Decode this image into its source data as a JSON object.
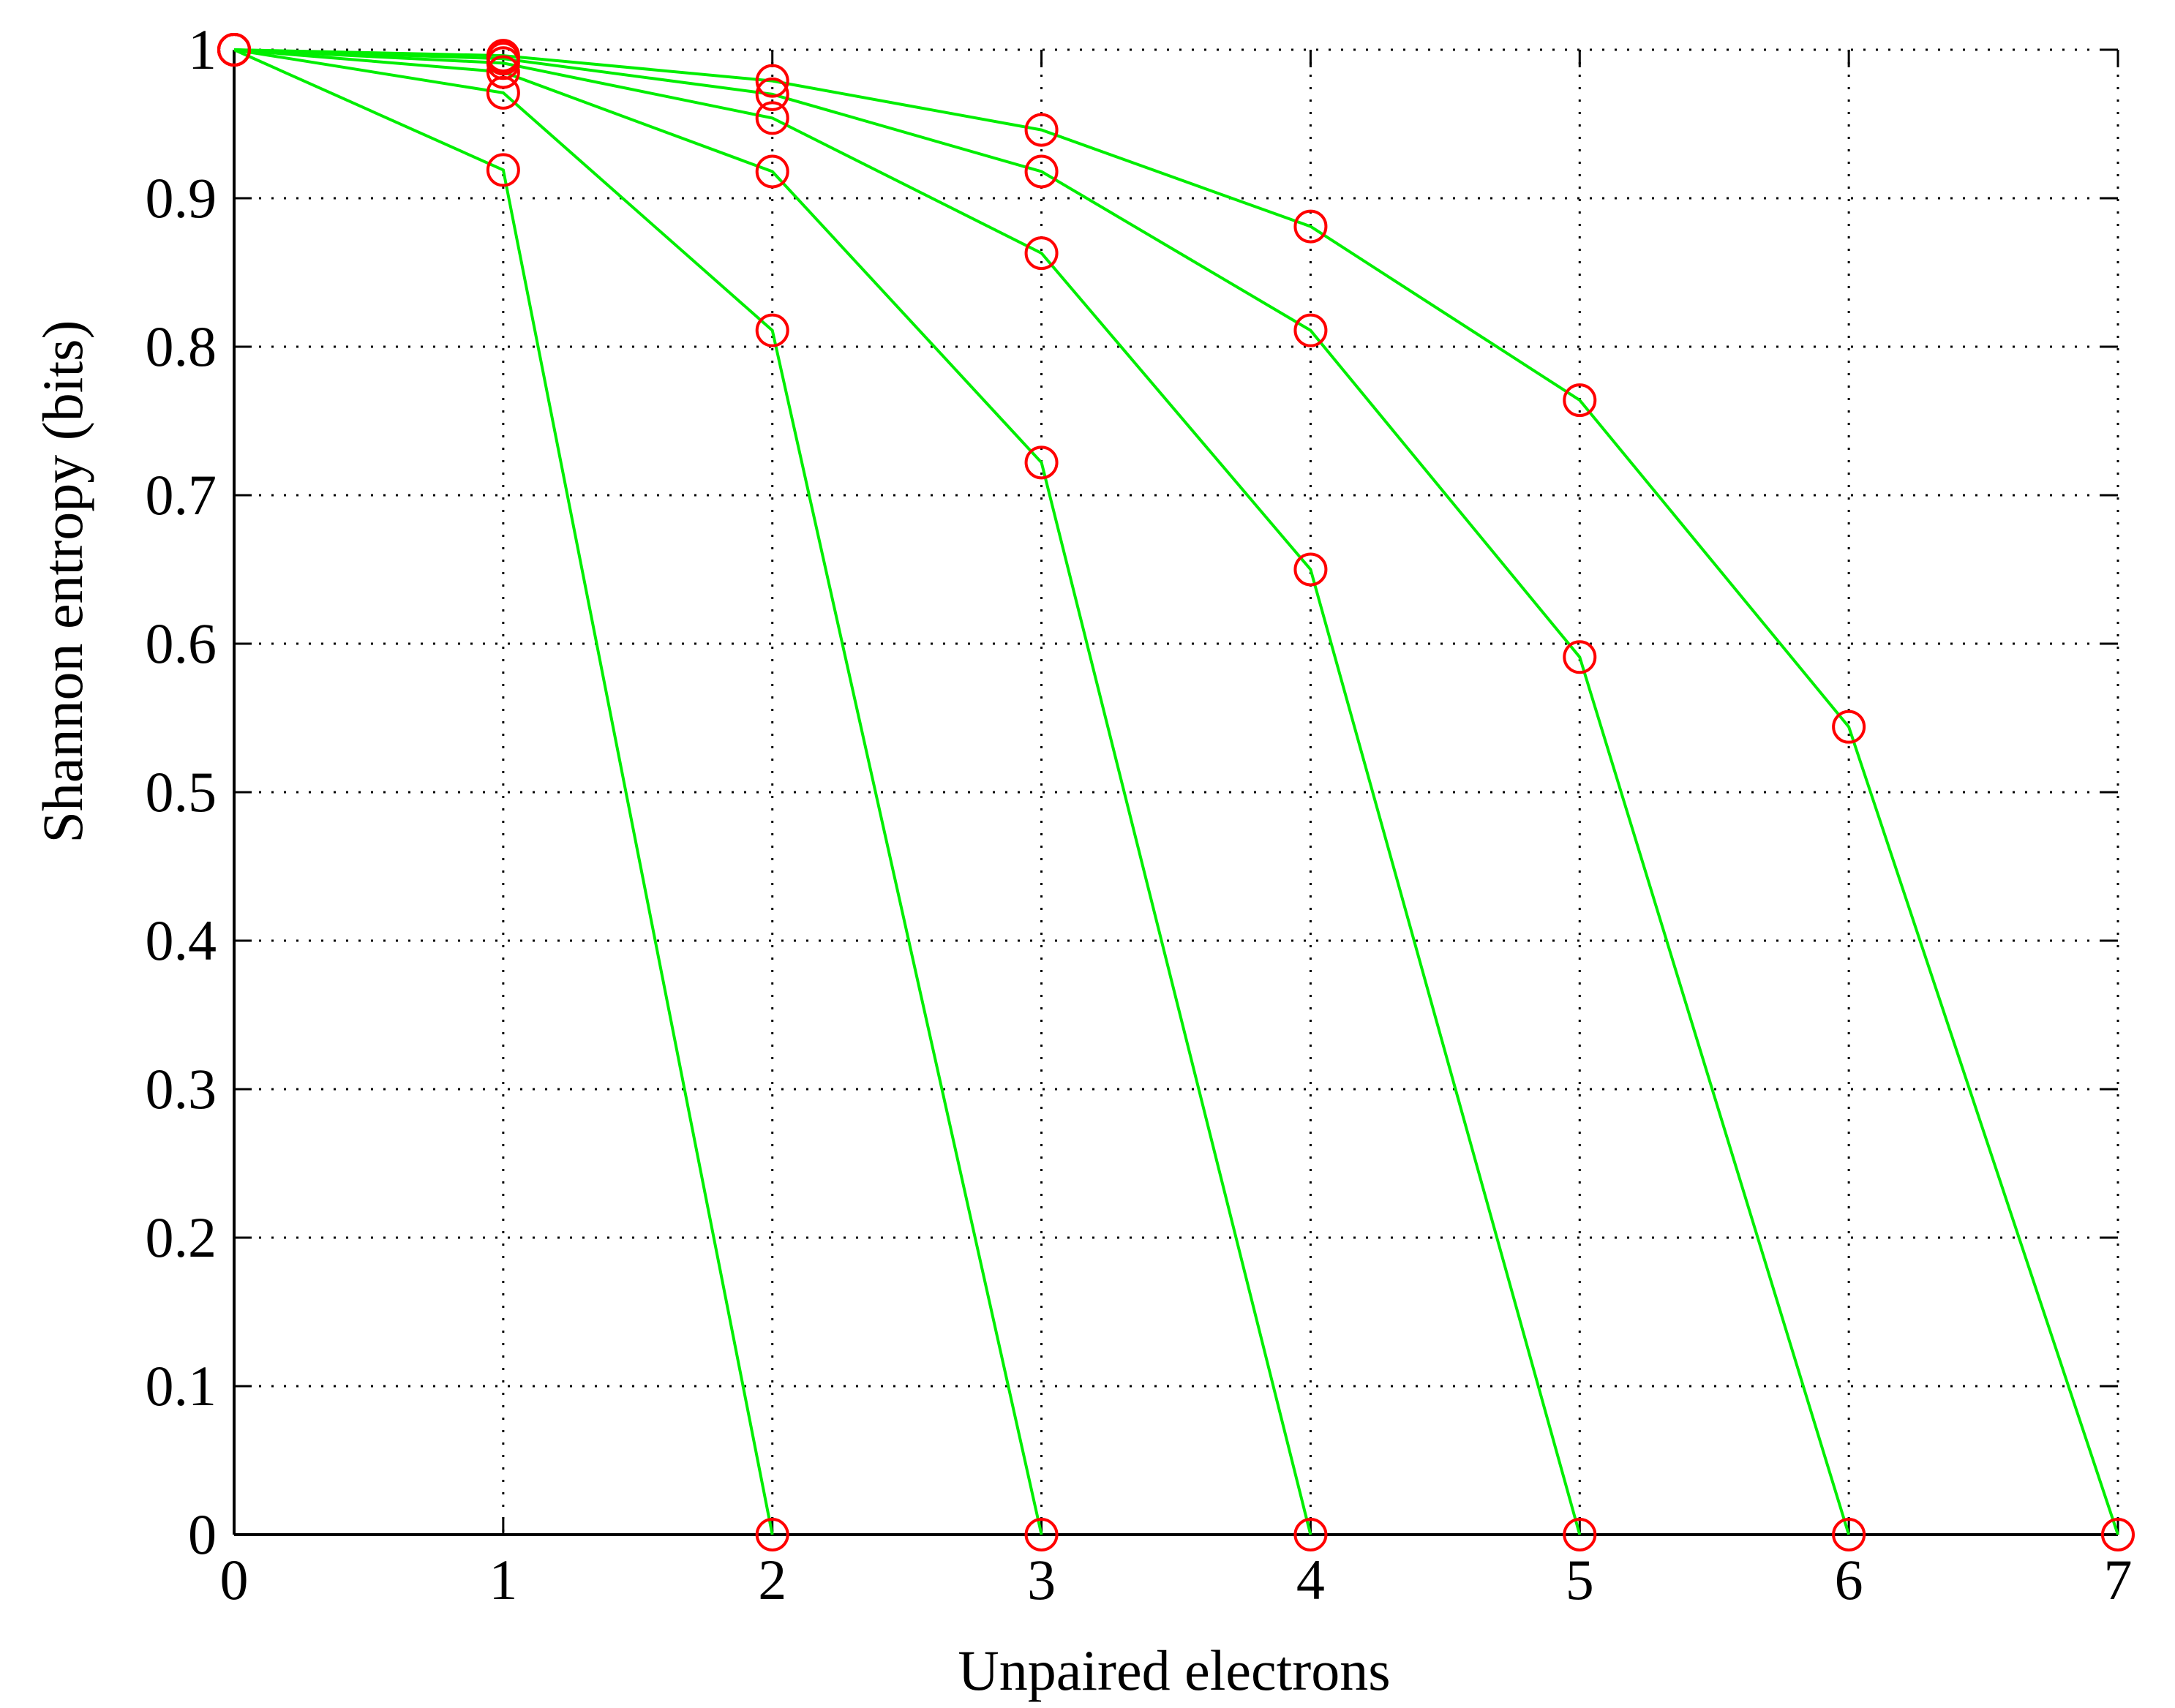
{
  "chart_data": {
    "type": "line",
    "xlabel": "Unpaired electrons",
    "ylabel": "Shannon entropy (bits)",
    "xlim": [
      0,
      7
    ],
    "ylim": [
      0,
      1
    ],
    "x_ticks": [
      "0",
      "1",
      "2",
      "3",
      "4",
      "5",
      "6",
      "7"
    ],
    "y_ticks": [
      "0",
      "0.1",
      "0.2",
      "0.3",
      "0.4",
      "0.5",
      "0.6",
      "0.7",
      "0.8",
      "0.9",
      "1"
    ],
    "grid": true,
    "line_color": "#00ee00",
    "marker_color": "#ff0000",
    "marker": "open-circle",
    "series": [
      {
        "points": [
          [
            0,
            1.0
          ],
          [
            1,
            0.919
          ],
          [
            2,
            0.0
          ]
        ]
      },
      {
        "points": [
          [
            0,
            1.0
          ],
          [
            1,
            0.971
          ],
          [
            2,
            0.811
          ],
          [
            3,
            0.0
          ]
        ]
      },
      {
        "points": [
          [
            0,
            1.0
          ],
          [
            1,
            0.985
          ],
          [
            2,
            0.918
          ],
          [
            3,
            0.722
          ],
          [
            4,
            0.0
          ]
        ]
      },
      {
        "points": [
          [
            0,
            1.0
          ],
          [
            1,
            0.991
          ],
          [
            2,
            0.954
          ],
          [
            3,
            0.863
          ],
          [
            4,
            0.65
          ],
          [
            5,
            0.0
          ]
        ]
      },
      {
        "points": [
          [
            0,
            1.0
          ],
          [
            1,
            0.994
          ],
          [
            2,
            0.97
          ],
          [
            3,
            0.918
          ],
          [
            4,
            0.811
          ],
          [
            5,
            0.591
          ],
          [
            6,
            0.0
          ]
        ]
      },
      {
        "points": [
          [
            0,
            1.0
          ],
          [
            1,
            0.996
          ],
          [
            2,
            0.979
          ],
          [
            3,
            0.946
          ],
          [
            4,
            0.881
          ],
          [
            5,
            0.764
          ],
          [
            6,
            0.544
          ],
          [
            7,
            0.0
          ]
        ]
      }
    ]
  }
}
